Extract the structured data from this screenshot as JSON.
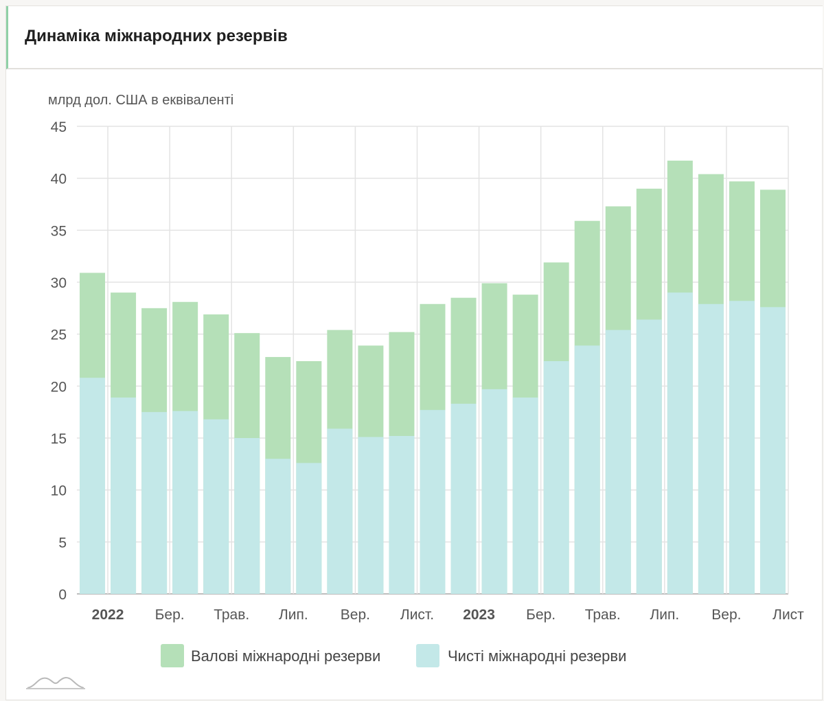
{
  "title": "Динаміка міжнародних резервів",
  "chart_data": {
    "type": "bar",
    "stacked": false,
    "overlapping": true,
    "ylabel": "млрд дол. США в еквіваленті",
    "ylim": [
      0,
      45
    ],
    "yticks": [
      0,
      5,
      10,
      15,
      20,
      25,
      30,
      35,
      40,
      45
    ],
    "grid": true,
    "legend_position": "bottom",
    "x_tick_labels": [
      {
        "label": "2022",
        "bold": true
      },
      {
        "label": "Бер.",
        "bold": false
      },
      {
        "label": "Трав.",
        "bold": false
      },
      {
        "label": "Лип.",
        "bold": false
      },
      {
        "label": "Вер.",
        "bold": false
      },
      {
        "label": "Лист.",
        "bold": false
      },
      {
        "label": "2023",
        "bold": true
      },
      {
        "label": "Бер.",
        "bold": false
      },
      {
        "label": "Трав.",
        "bold": false
      },
      {
        "label": "Лип.",
        "bold": false
      },
      {
        "label": "Вер.",
        "bold": false
      },
      {
        "label": "Лист",
        "bold": false
      }
    ],
    "series": [
      {
        "name": "Валові міжнародні резерви",
        "color": "#b5e0b8",
        "values": [
          30.9,
          29.0,
          27.5,
          28.1,
          26.9,
          25.1,
          22.8,
          22.4,
          25.4,
          23.9,
          25.2,
          27.9,
          28.5,
          29.9,
          28.8,
          31.9,
          35.9,
          37.3,
          39.0,
          41.7,
          40.4,
          39.7,
          38.9
        ]
      },
      {
        "name": "Чисті міжнародні резерви",
        "color": "#c3e8e8",
        "values": [
          20.8,
          18.9,
          17.5,
          17.6,
          16.8,
          15.0,
          13.0,
          12.6,
          15.9,
          15.1,
          15.2,
          17.7,
          18.3,
          19.7,
          18.9,
          22.4,
          23.9,
          25.4,
          26.4,
          29.0,
          27.9,
          28.2,
          27.6
        ]
      }
    ]
  }
}
